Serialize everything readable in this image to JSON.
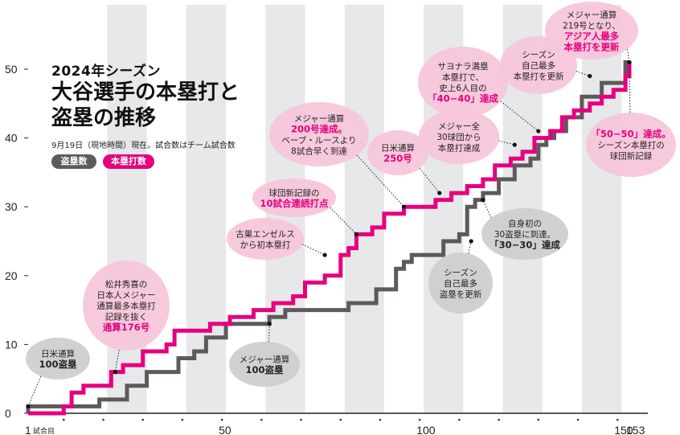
{
  "header": {
    "season": "2024年シーズン",
    "title_line1": "大谷選手の本塁打と",
    "title_line2": "盗塁の推移",
    "note": "9月19日（現地時間）現在。試合数はチーム試合数"
  },
  "legend": {
    "steals": "盗塁数",
    "homers": "本塁打数",
    "steals_color": "#5f595b",
    "homers_color": "#e6007e"
  },
  "colors": {
    "highlight": "#f7c6da",
    "highlight_text": "#e6007e",
    "gray_bubble": "#cfcfcf",
    "column_band": "#e6e8e9"
  },
  "chart_data": {
    "type": "line",
    "title": "",
    "xlabel": "",
    "ylabel": "",
    "xlim": [
      1,
      153
    ],
    "ylim": [
      0,
      50
    ],
    "x_ticks": [
      {
        "value": 1,
        "label": "1",
        "suffix": "試合目"
      },
      {
        "value": 50,
        "label": "50"
      },
      {
        "value": 100,
        "label": "100"
      },
      {
        "value": 150,
        "label": "150"
      },
      {
        "value": 153,
        "label": "153"
      }
    ],
    "y_ticks": [
      0,
      10,
      20,
      30,
      40,
      50
    ],
    "series": [
      {
        "name": "盗塁数",
        "color": "#5f595b",
        "points": [
          [
            1,
            0
          ],
          [
            1,
            1
          ],
          [
            19,
            1
          ],
          [
            19,
            2
          ],
          [
            26,
            2
          ],
          [
            26,
            4
          ],
          [
            31,
            4
          ],
          [
            31,
            6
          ],
          [
            39,
            6
          ],
          [
            39,
            8
          ],
          [
            43,
            8
          ],
          [
            43,
            9
          ],
          [
            46,
            9
          ],
          [
            46,
            11
          ],
          [
            51,
            11
          ],
          [
            51,
            13
          ],
          [
            62,
            13
          ],
          [
            62,
            14
          ],
          [
            66,
            14
          ],
          [
            66,
            15
          ],
          [
            82,
            15
          ],
          [
            82,
            16
          ],
          [
            89,
            16
          ],
          [
            89,
            18
          ],
          [
            94,
            18
          ],
          [
            94,
            21
          ],
          [
            96,
            21
          ],
          [
            96,
            22
          ],
          [
            98,
            22
          ],
          [
            98,
            23
          ],
          [
            106,
            23
          ],
          [
            106,
            25
          ],
          [
            110,
            25
          ],
          [
            110,
            26
          ],
          [
            112,
            26
          ],
          [
            112,
            30
          ],
          [
            114,
            30
          ],
          [
            114,
            31
          ],
          [
            116,
            31
          ],
          [
            116,
            32
          ],
          [
            120,
            32
          ],
          [
            120,
            34
          ],
          [
            124,
            34
          ],
          [
            124,
            36
          ],
          [
            128,
            36
          ],
          [
            128,
            37
          ],
          [
            130,
            37
          ],
          [
            130,
            39
          ],
          [
            132,
            39
          ],
          [
            132,
            40
          ],
          [
            134,
            40
          ],
          [
            134,
            41
          ],
          [
            137,
            41
          ],
          [
            137,
            43
          ],
          [
            141,
            43
          ],
          [
            141,
            46
          ],
          [
            146,
            46
          ],
          [
            146,
            48
          ],
          [
            152,
            48
          ],
          [
            152,
            51
          ],
          [
            153,
            51
          ]
        ]
      },
      {
        "name": "本塁打数",
        "color": "#e6007e",
        "points": [
          [
            1,
            0
          ],
          [
            10,
            0
          ],
          [
            10,
            1
          ],
          [
            12,
            1
          ],
          [
            12,
            3
          ],
          [
            15,
            3
          ],
          [
            15,
            4
          ],
          [
            22,
            4
          ],
          [
            22,
            6
          ],
          [
            25,
            6
          ],
          [
            25,
            7
          ],
          [
            30,
            7
          ],
          [
            30,
            9
          ],
          [
            36,
            9
          ],
          [
            36,
            10
          ],
          [
            38,
            10
          ],
          [
            38,
            12
          ],
          [
            47,
            12
          ],
          [
            47,
            13
          ],
          [
            52,
            13
          ],
          [
            52,
            14
          ],
          [
            58,
            14
          ],
          [
            58,
            15
          ],
          [
            63,
            15
          ],
          [
            63,
            16
          ],
          [
            68,
            16
          ],
          [
            68,
            17
          ],
          [
            71,
            17
          ],
          [
            71,
            19
          ],
          [
            76,
            19
          ],
          [
            76,
            20
          ],
          [
            80,
            20
          ],
          [
            80,
            23
          ],
          [
            82,
            23
          ],
          [
            82,
            24
          ],
          [
            84,
            24
          ],
          [
            84,
            26
          ],
          [
            88,
            26
          ],
          [
            88,
            27
          ],
          [
            91,
            27
          ],
          [
            91,
            29
          ],
          [
            96,
            29
          ],
          [
            96,
            30
          ],
          [
            104,
            30
          ],
          [
            104,
            31
          ],
          [
            108,
            31
          ],
          [
            108,
            32
          ],
          [
            112,
            32
          ],
          [
            112,
            33
          ],
          [
            116,
            33
          ],
          [
            116,
            34
          ],
          [
            119,
            34
          ],
          [
            119,
            36
          ],
          [
            123,
            36
          ],
          [
            123,
            37
          ],
          [
            126,
            37
          ],
          [
            126,
            38
          ],
          [
            129,
            38
          ],
          [
            129,
            40
          ],
          [
            133,
            40
          ],
          [
            133,
            41
          ],
          [
            136,
            41
          ],
          [
            136,
            43
          ],
          [
            139,
            43
          ],
          [
            139,
            44
          ],
          [
            143,
            44
          ],
          [
            143,
            45
          ],
          [
            146,
            45
          ],
          [
            146,
            46
          ],
          [
            149,
            46
          ],
          [
            149,
            47
          ],
          [
            152,
            47
          ],
          [
            152,
            49
          ],
          [
            153,
            49
          ],
          [
            153,
            51
          ]
        ]
      }
    ],
    "annotations": [
      {
        "series": "盗塁数",
        "x": 1,
        "y": 1,
        "text": [
          "日米通算",
          "100盗塁"
        ],
        "strong": [
          1
        ],
        "style": "gray"
      },
      {
        "series": "本塁打数",
        "x": 23,
        "y": 6,
        "text": [
          "松井秀喜の",
          "日本人メジャー",
          "通算最多本塁打",
          "記録を抜く",
          "通算176号"
        ],
        "strong": [
          4
        ],
        "style": "pink"
      },
      {
        "series": "盗塁数",
        "x": 62,
        "y": 13,
        "text": [
          "メジャー通算",
          "100盗塁"
        ],
        "strong": [
          1
        ],
        "style": "gray"
      },
      {
        "series": "本塁打数",
        "x": 76,
        "y": 23,
        "text": [
          "古巣エンゼルス",
          "から初本塁打"
        ],
        "strong": [],
        "style": "pink"
      },
      {
        "series": "本塁打数",
        "x": 84,
        "y": 26,
        "text": [
          "球団新記録の",
          "10試合連続打点"
        ],
        "strong": [
          1
        ],
        "style": "pink"
      },
      {
        "series": "本塁打数",
        "x": 96,
        "y": 30,
        "text": [
          "メジャー通算",
          "200号達成。",
          "ベーブ・ルースより",
          "8試合早く到達"
        ],
        "strong": [
          1
        ],
        "style": "pink"
      },
      {
        "series": "本塁打数",
        "x": 105,
        "y": 32,
        "text": [
          "日米通算",
          "250号"
        ],
        "strong": [
          1
        ],
        "style": "pink"
      },
      {
        "series": "盗塁数",
        "x": 113,
        "y": 25,
        "text": [
          "シーズン",
          "自己最多",
          "盗塁を更新"
        ],
        "strong": [],
        "style": "gray"
      },
      {
        "series": "盗塁数",
        "x": 116,
        "y": 31,
        "text": [
          "自身初の",
          "30盗塁に到達。",
          "「30−30」達成"
        ],
        "strong": [
          2
        ],
        "style": "gray"
      },
      {
        "series": "本塁打数",
        "x": 124,
        "y": 39,
        "text": [
          "メジャー全",
          "30球団から",
          "本塁打達成"
        ],
        "strong": [],
        "style": "pink"
      },
      {
        "series": "本塁打数",
        "x": 130,
        "y": 41,
        "text": [
          "サヨナラ満塁",
          "本塁打で、",
          "史上6人目の",
          "「40−40」達成"
        ],
        "strong": [
          3
        ],
        "style": "pink"
      },
      {
        "series": "本塁打数",
        "x": 143,
        "y": 49,
        "text": [
          "シーズン",
          "自己最多",
          "本塁打を更新"
        ],
        "strong": [],
        "style": "pink"
      },
      {
        "series": "本塁打数",
        "x": 153,
        "y": 51,
        "text": [
          "メジャー通算",
          "219号となり、",
          "アジア人最多",
          "本塁打を更新"
        ],
        "strong": [
          2,
          3
        ],
        "style": "pink"
      },
      {
        "series": "本塁打数",
        "x": 153,
        "y": 51,
        "text": [
          "「50−50」達成。",
          "シーズン本塁打の",
          "球団新記録"
        ],
        "strong": [
          0
        ],
        "style": "pink"
      }
    ]
  }
}
